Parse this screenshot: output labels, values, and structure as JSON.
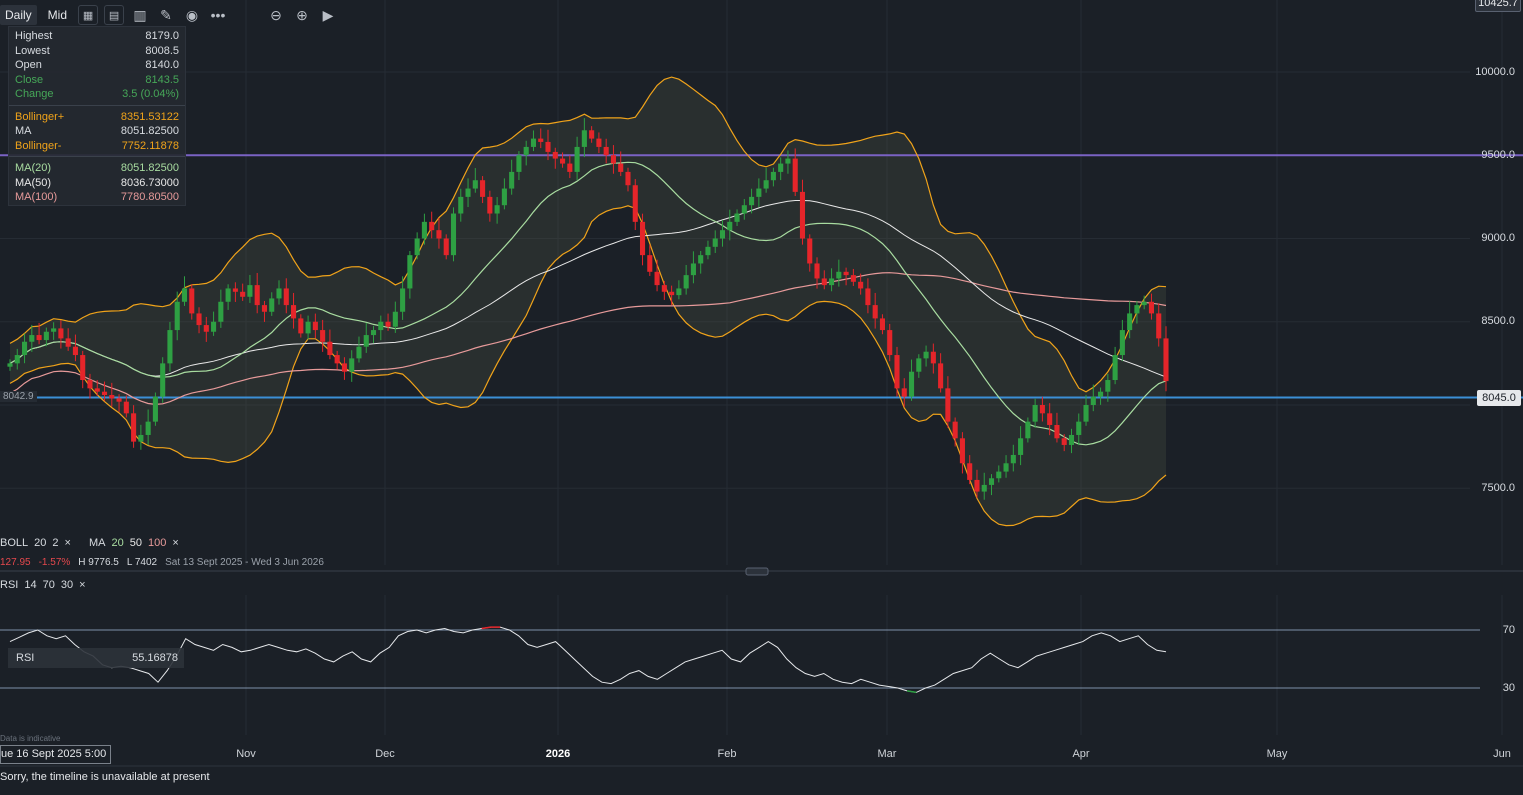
{
  "toolbar": {
    "timeframe": "Daily",
    "price_mode": "Mid",
    "icons": [
      "compare-icon",
      "indicators-icon",
      "chart-type-icon",
      "draw-icon",
      "visibility-icon",
      "more-icon",
      "zoom-out-icon",
      "zoom-in-icon",
      "go-to-end-icon"
    ]
  },
  "info": {
    "highest_label": "Highest",
    "highest": "8179.0",
    "lowest_label": "Lowest",
    "lowest": "8008.5",
    "open_label": "Open",
    "open": "8140.0",
    "close_label": "Close",
    "close": "8143.5",
    "change_label": "Change",
    "change": "3.5 (0.04%)",
    "bollinger_plus_label": "Bollinger+",
    "bollinger_plus": "8351.53122",
    "ma_label": "MA",
    "ma": "8051.82500",
    "bollinger_minus_label": "Bollinger-",
    "bollinger_minus": "7752.11878",
    "ma20_label": "MA(20)",
    "ma20": "8051.82500",
    "ma50_label": "MA(50)",
    "ma50": "8036.73000",
    "ma100_label": "MA(100)",
    "ma100": "7780.80500"
  },
  "legend": {
    "boll": "BOLL",
    "boll_p1": "20",
    "boll_p2": "2",
    "ma": "MA",
    "ma_p1": "20",
    "ma_p2": "50",
    "ma_p3": "100",
    "close_partial": "127.95",
    "change_pct": "-1.57%",
    "high": "H 9776.5",
    "low": "L 7402",
    "range": "Sat 13 Sept 2025 - Wed 3 Jun 2026",
    "close_sym": "×"
  },
  "rsi_legend": {
    "label": "RSI",
    "p1": "14",
    "p2": "70",
    "p3": "30"
  },
  "rsi_box": {
    "label": "RSI",
    "value": "55.16878"
  },
  "price_tags": {
    "current": "8045.0",
    "left_line": "8042.9",
    "top_partial": "10425.7"
  },
  "colors": {
    "up": "#2ea043",
    "down": "#e5252a",
    "bollinger": "#f0a31a",
    "ma20": "#a8dca0",
    "ma50": "#e8e8e8",
    "ma100": "#e79a9a",
    "hline_purple": "#7a62c4",
    "hline_blue": "#3b8fd6"
  },
  "footer": {
    "date": "ue 16 Sept 2025 5:00",
    "message": "Sorry, the timeline is unavailable at present",
    "indicative": "Data is indicative"
  },
  "chart_data": {
    "type": "candlestick",
    "price_axis": {
      "ticks": [
        10000,
        9500,
        9000,
        8500,
        8000,
        7500
      ],
      "tick_labels": [
        "10000.0",
        "9500.0",
        "9000.0",
        "8500.0",
        "8000.0",
        "7500.0"
      ]
    },
    "x_axis_labels": [
      "Nov",
      "Dec",
      "2026",
      "Feb",
      "Mar",
      "Apr",
      "May",
      "Jun"
    ],
    "horizontal_lines": [
      9500,
      8045
    ],
    "rsi": {
      "levels": [
        70,
        30
      ],
      "level_labels": [
        "70",
        "30"
      ]
    },
    "close_series": [
      8250,
      8300,
      8380,
      8420,
      8390,
      8440,
      8460,
      8400,
      8350,
      8300,
      8150,
      8100,
      8080,
      8060,
      8040,
      8020,
      7950,
      7780,
      7820,
      7900,
      8050,
      8250,
      8450,
      8620,
      8700,
      8550,
      8480,
      8440,
      8500,
      8620,
      8700,
      8680,
      8650,
      8720,
      8600,
      8560,
      8640,
      8700,
      8600,
      8520,
      8430,
      8500,
      8450,
      8380,
      8300,
      8250,
      8200,
      8280,
      8350,
      8420,
      8450,
      8500,
      8470,
      8560,
      8700,
      8900,
      9000,
      9100,
      9050,
      9000,
      8900,
      9150,
      9250,
      9300,
      9350,
      9250,
      9150,
      9200,
      9300,
      9400,
      9500,
      9550,
      9600,
      9580,
      9520,
      9480,
      9450,
      9400,
      9550,
      9650,
      9600,
      9550,
      9500,
      9450,
      9400,
      9320,
      9100,
      8900,
      8800,
      8720,
      8680,
      8660,
      8700,
      8780,
      8850,
      8900,
      8950,
      9000,
      9050,
      9100,
      9150,
      9200,
      9250,
      9300,
      9350,
      9400,
      9450,
      9480,
      9280,
      9000,
      8850,
      8760,
      8720,
      8760,
      8800,
      8780,
      8740,
      8700,
      8600,
      8520,
      8450,
      8300,
      8100,
      8050,
      8200,
      8280,
      8320,
      8250,
      8100,
      7900,
      7800,
      7650,
      7550,
      7480,
      7520,
      7560,
      7600,
      7650,
      7700,
      7800,
      7900,
      8000,
      7950,
      7880,
      7800,
      7760,
      7820,
      7900,
      8000,
      8050,
      8080,
      8150,
      8300,
      8450,
      8550,
      8600,
      8620,
      8550,
      8400,
      8143.5
    ],
    "rsi_series": [
      62,
      65,
      68,
      70,
      66,
      64,
      66,
      60,
      55,
      52,
      46,
      44,
      45,
      44,
      42,
      40,
      34,
      42,
      52,
      64,
      60,
      58,
      56,
      60,
      58,
      55,
      56,
      58,
      60,
      58,
      56,
      55,
      57,
      54,
      50,
      48,
      52,
      55,
      50,
      48,
      54,
      58,
      66,
      69,
      70,
      68,
      70,
      71,
      69,
      68,
      70,
      71,
      72,
      72,
      70,
      66,
      60,
      58,
      60,
      62,
      56,
      50,
      44,
      38,
      34,
      33,
      36,
      40,
      42,
      38,
      36,
      40,
      44,
      48,
      50,
      52,
      54,
      56,
      50,
      48,
      54,
      58,
      62,
      58,
      50,
      44,
      40,
      38,
      40,
      36,
      34,
      33,
      36,
      34,
      32,
      31,
      30,
      28,
      27,
      30,
      32,
      36,
      40,
      42,
      44,
      50,
      54,
      50,
      46,
      44,
      48,
      52,
      54,
      56,
      58,
      60,
      62,
      66,
      68,
      66,
      62,
      64,
      66,
      60,
      56,
      55
    ]
  }
}
